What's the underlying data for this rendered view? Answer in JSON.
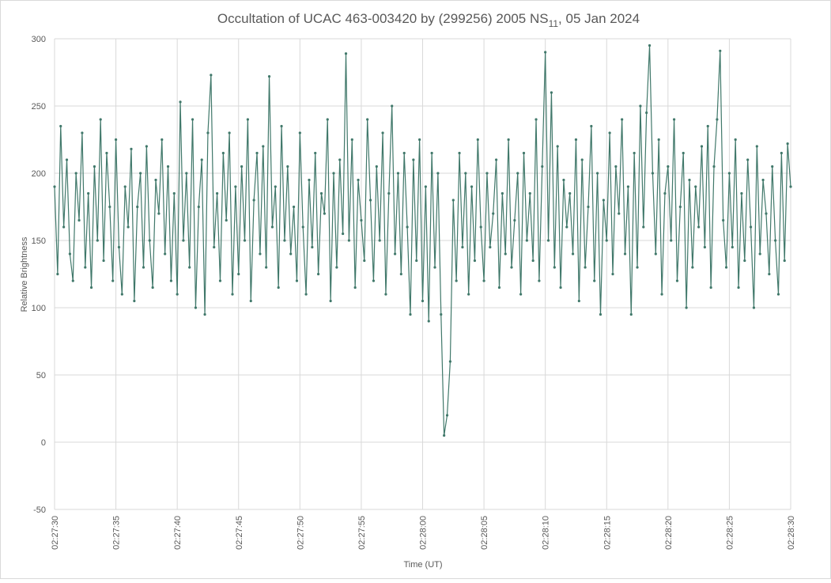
{
  "chart_data": {
    "type": "line",
    "title": {
      "main": "Occultation of UCAC 463-003420 by (299256) 2005 NS",
      "sub": "11",
      "tail": ", 05 Jan 2024"
    },
    "x_label": "Time (UT)",
    "y_label": "Relative Brightness",
    "xlim": [
      8850,
      8910
    ],
    "xticks": [
      {
        "value": 8850,
        "label": "02:27:30"
      },
      {
        "value": 8855,
        "label": "02:27:35"
      },
      {
        "value": 8860,
        "label": "02:27:40"
      },
      {
        "value": 8865,
        "label": "02:27:45"
      },
      {
        "value": 8870,
        "label": "02:27:50"
      },
      {
        "value": 8875,
        "label": "02:27:55"
      },
      {
        "value": 8880,
        "label": "02:28:00"
      },
      {
        "value": 8885,
        "label": "02:28:05"
      },
      {
        "value": 8890,
        "label": "02:28:10"
      },
      {
        "value": 8895,
        "label": "02:28:15"
      },
      {
        "value": 8900,
        "label": "02:28:20"
      },
      {
        "value": 8905,
        "label": "02:28:25"
      },
      {
        "value": 8910,
        "label": "02:28:30"
      }
    ],
    "ylim": [
      -50,
      300
    ],
    "yticks": [
      -50,
      0,
      50,
      100,
      150,
      200,
      250,
      300
    ],
    "grid": true,
    "x": [
      8850,
      8850.25,
      8850.5,
      8850.75,
      8851,
      8851.25,
      8851.5,
      8851.75,
      8852,
      8852.25,
      8852.5,
      8852.75,
      8853,
      8853.25,
      8853.5,
      8853.75,
      8854,
      8854.25,
      8854.5,
      8854.75,
      8855,
      8855.25,
      8855.5,
      8855.75,
      8856,
      8856.25,
      8856.5,
      8856.75,
      8857,
      8857.25,
      8857.5,
      8857.75,
      8858,
      8858.25,
      8858.5,
      8858.75,
      8859,
      8859.25,
      8859.5,
      8859.75,
      8860,
      8860.25,
      8860.5,
      8860.75,
      8861,
      8861.25,
      8861.5,
      8861.75,
      8862,
      8862.25,
      8862.5,
      8862.75,
      8863,
      8863.25,
      8863.5,
      8863.75,
      8864,
      8864.25,
      8864.5,
      8864.75,
      8865,
      8865.25,
      8865.5,
      8865.75,
      8866,
      8866.25,
      8866.5,
      8866.75,
      8867,
      8867.25,
      8867.5,
      8867.75,
      8868,
      8868.25,
      8868.5,
      8868.75,
      8869,
      8869.25,
      8869.5,
      8869.75,
      8870,
      8870.25,
      8870.5,
      8870.75,
      8871,
      8871.25,
      8871.5,
      8871.75,
      8872,
      8872.25,
      8872.5,
      8872.75,
      8873,
      8873.25,
      8873.5,
      8873.75,
      8874,
      8874.25,
      8874.5,
      8874.75,
      8875,
      8875.25,
      8875.5,
      8875.75,
      8876,
      8876.25,
      8876.5,
      8876.75,
      8877,
      8877.25,
      8877.5,
      8877.75,
      8878,
      8878.25,
      8878.5,
      8878.75,
      8879,
      8879.25,
      8879.5,
      8879.75,
      8880,
      8880.25,
      8880.5,
      8880.75,
      8881,
      8881.25,
      8881.5,
      8881.75,
      8882,
      8882.25,
      8882.5,
      8882.75,
      8883,
      8883.25,
      8883.5,
      8883.75,
      8884,
      8884.25,
      8884.5,
      8884.75,
      8885,
      8885.25,
      8885.5,
      8885.75,
      8886,
      8886.25,
      8886.5,
      8886.75,
      8887,
      8887.25,
      8887.5,
      8887.75,
      8888,
      8888.25,
      8888.5,
      8888.75,
      8889,
      8889.25,
      8889.5,
      8889.75,
      8890,
      8890.25,
      8890.5,
      8890.75,
      8891,
      8891.25,
      8891.5,
      8891.75,
      8892,
      8892.25,
      8892.5,
      8892.75,
      8893,
      8893.25,
      8893.5,
      8893.75,
      8894,
      8894.25,
      8894.5,
      8894.75,
      8895,
      8895.25,
      8895.5,
      8895.75,
      8896,
      8896.25,
      8896.5,
      8896.75,
      8897,
      8897.25,
      8897.5,
      8897.75,
      8898,
      8898.25,
      8898.5,
      8898.75,
      8899,
      8899.25,
      8899.5,
      8899.75,
      8900,
      8900.25,
      8900.5,
      8900.75,
      8901,
      8901.25,
      8901.5,
      8901.75,
      8902,
      8902.25,
      8902.5,
      8902.75,
      8903,
      8903.25,
      8903.5,
      8903.75,
      8904,
      8904.25,
      8904.5,
      8904.75,
      8905,
      8905.25,
      8905.5,
      8905.75,
      8906,
      8906.25,
      8906.5,
      8906.75,
      8907,
      8907.25,
      8907.5,
      8907.75,
      8908,
      8908.25,
      8908.5,
      8908.75,
      8909,
      8909.25,
      8909.5,
      8909.75,
      8910
    ],
    "series": [
      {
        "color": "#40786a",
        "values": [
          190,
          125,
          235,
          160,
          210,
          140,
          120,
          200,
          165,
          230,
          130,
          185,
          115,
          205,
          150,
          240,
          135,
          215,
          175,
          120,
          225,
          145,
          110,
          190,
          160,
          218,
          105,
          175,
          200,
          130,
          220,
          150,
          115,
          195,
          170,
          225,
          140,
          205,
          120,
          185,
          110,
          253,
          150,
          200,
          130,
          240,
          100,
          175,
          210,
          95,
          230,
          273,
          145,
          185,
          120,
          215,
          165,
          230,
          110,
          190,
          125,
          205,
          150,
          240,
          105,
          180,
          215,
          140,
          220,
          130,
          272,
          160,
          190,
          115,
          235,
          150,
          205,
          140,
          175,
          120,
          230,
          160,
          110,
          195,
          145,
          215,
          125,
          185,
          170,
          240,
          105,
          200,
          130,
          210,
          155,
          289,
          150,
          225,
          115,
          195,
          165,
          135,
          240,
          180,
          120,
          205,
          150,
          230,
          110,
          185,
          250,
          140,
          200,
          125,
          215,
          160,
          95,
          210,
          135,
          225,
          105,
          190,
          90,
          215,
          130,
          200,
          95,
          5,
          20,
          60,
          180,
          120,
          215,
          145,
          200,
          110,
          190,
          135,
          225,
          160,
          120,
          200,
          145,
          170,
          210,
          115,
          185,
          140,
          225,
          130,
          165,
          200,
          110,
          215,
          150,
          185,
          135,
          240,
          120,
          205,
          290,
          150,
          260,
          130,
          220,
          115,
          195,
          160,
          185,
          140,
          225,
          105,
          210,
          130,
          175,
          235,
          120,
          200,
          95,
          180,
          150,
          230,
          125,
          205,
          170,
          240,
          140,
          190,
          95,
          215,
          130,
          250,
          160,
          245,
          295,
          200,
          140,
          225,
          110,
          185,
          205,
          150,
          240,
          120,
          175,
          215,
          100,
          195,
          130,
          190,
          160,
          220,
          145,
          235,
          115,
          205,
          240,
          291,
          165,
          130,
          200,
          145,
          225,
          115,
          185,
          135,
          210,
          160,
          100,
          220,
          140,
          195,
          170,
          125,
          205,
          150,
          110,
          215,
          135,
          222,
          190
        ]
      }
    ]
  }
}
